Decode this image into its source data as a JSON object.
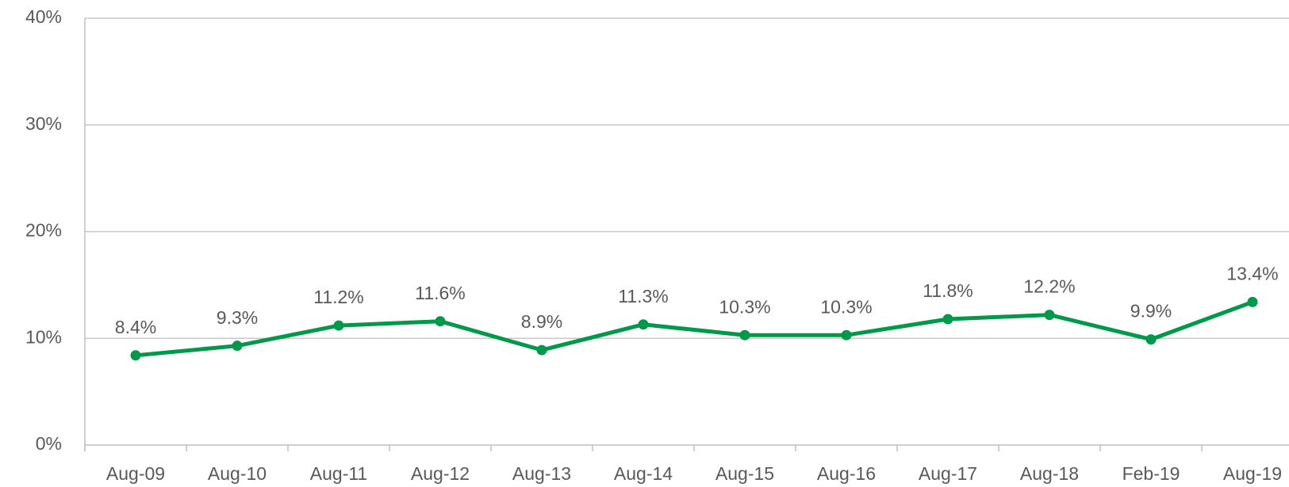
{
  "chart_data": {
    "type": "line",
    "categories": [
      "Aug-09",
      "Aug-10",
      "Aug-11",
      "Aug-12",
      "Aug-13",
      "Aug-14",
      "Aug-15",
      "Aug-16",
      "Aug-17",
      "Aug-18",
      "Feb-19",
      "Aug-19"
    ],
    "series": [
      {
        "color": "#00994a",
        "values": [
          8.4,
          9.3,
          11.2,
          11.6,
          8.9,
          11.3,
          10.3,
          10.3,
          11.8,
          12.2,
          9.9,
          13.4
        ],
        "value_labels": [
          "8.4%",
          "9.3%",
          "11.2%",
          "11.6%",
          "8.9%",
          "11.3%",
          "10.3%",
          "10.3%",
          "11.8%",
          "12.2%",
          "9.9%",
          "13.4%"
        ]
      }
    ],
    "ylim": [
      0,
      40
    ],
    "yticks": [
      {
        "value": 0,
        "label": "0%"
      },
      {
        "value": 10,
        "label": "10%"
      },
      {
        "value": 20,
        "label": "20%"
      },
      {
        "value": 30,
        "label": "30%"
      },
      {
        "value": 40,
        "label": "40%"
      }
    ],
    "grid": true
  }
}
